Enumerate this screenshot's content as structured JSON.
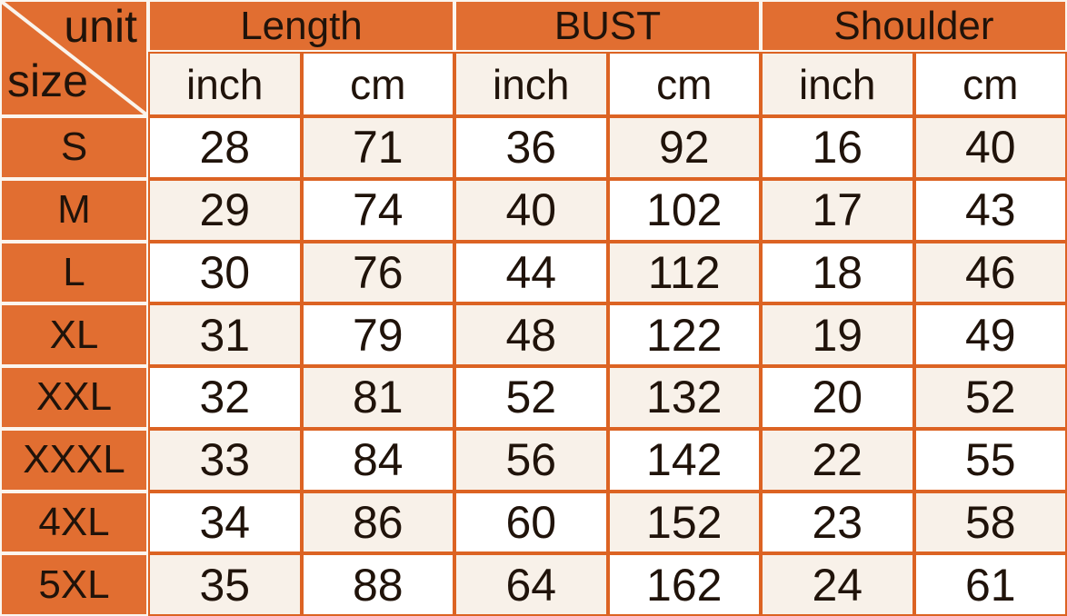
{
  "chart_data": {
    "type": "table",
    "corner": {
      "top": "unit",
      "bottom": "size"
    },
    "column_groups": [
      "Length",
      "BUST",
      "Shoulder"
    ],
    "sub_columns": [
      "inch",
      "cm",
      "inch",
      "cm",
      "inch",
      "cm"
    ],
    "rows": [
      {
        "size": "S",
        "values": [
          28,
          71,
          36,
          92,
          16,
          40
        ]
      },
      {
        "size": "M",
        "values": [
          29,
          74,
          40,
          102,
          17,
          43
        ]
      },
      {
        "size": "L",
        "values": [
          30,
          76,
          44,
          112,
          18,
          46
        ]
      },
      {
        "size": "XL",
        "values": [
          31,
          79,
          48,
          122,
          19,
          49
        ]
      },
      {
        "size": "XXL",
        "values": [
          32,
          81,
          52,
          132,
          20,
          52
        ]
      },
      {
        "size": "XXXL",
        "values": [
          33,
          84,
          56,
          142,
          22,
          55
        ]
      },
      {
        "size": "4XL",
        "values": [
          34,
          86,
          60,
          152,
          23,
          58
        ]
      },
      {
        "size": "5XL",
        "values": [
          35,
          88,
          64,
          162,
          24,
          61
        ]
      }
    ]
  },
  "colors": {
    "orange_fill": "#E16E31",
    "orange_border": "#DC6323",
    "gap_line": "#FBF5EE",
    "cream_cell": "#F8F1E9",
    "white_cell": "#FFFFFF",
    "text": "#20130A",
    "diagonal_line": "#FAF4EC"
  }
}
